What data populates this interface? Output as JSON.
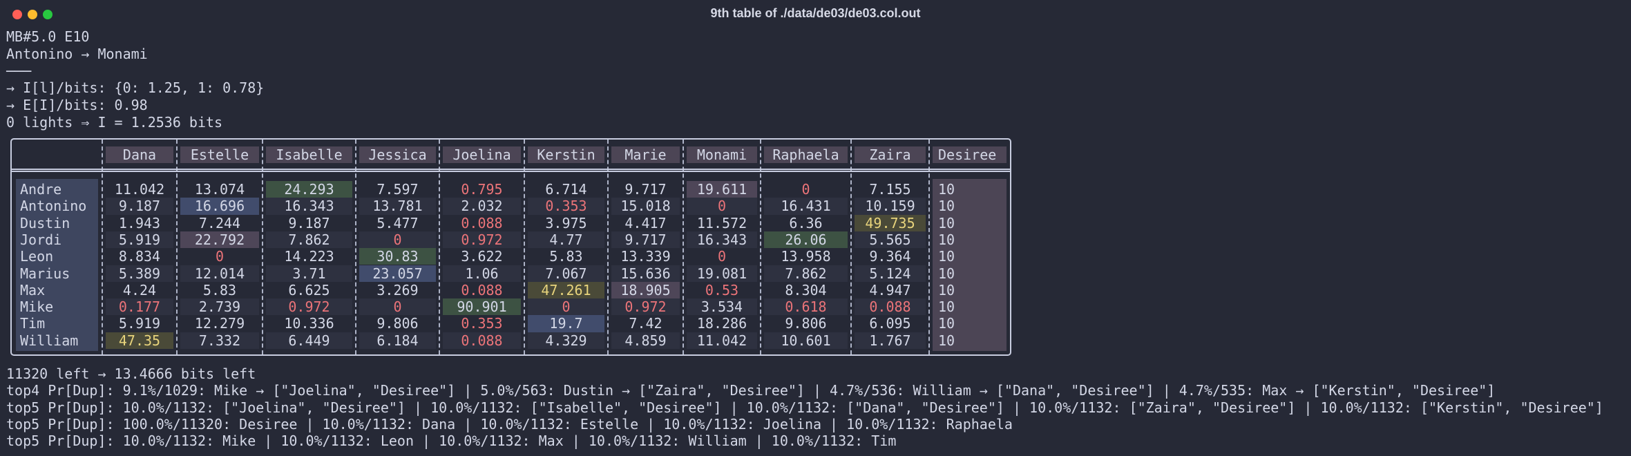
{
  "header": {
    "window_title": "9th table of ./data/de03/de03.col.out"
  },
  "lines": [
    "MB#5.0 E10",
    "Antonino → Monami",
    "───",
    "→ I[l]/bits: {0: 1.25, 1: 0.78}",
    "→ E[I]/bits: 0.98",
    "0 lights ⇒ I = 1.2536 bits"
  ],
  "table": {
    "columns": [
      "Dana",
      "Estelle",
      "Isabelle",
      "Jessica",
      "Joelina",
      "Kerstin",
      "Marie",
      "Monami",
      "Raphaela",
      "Zaira",
      "Desiree"
    ],
    "rows": [
      {
        "label": "Andre",
        "cells": [
          "11.042",
          "13.074",
          "24.293",
          "7.597",
          "0.795",
          "6.714",
          "9.717",
          "19.611",
          "0",
          "7.155",
          "10"
        ]
      },
      {
        "label": "Antonino",
        "cells": [
          "9.187",
          "16.696",
          "16.343",
          "13.781",
          "2.032",
          "0.353",
          "15.018",
          "0",
          "16.431",
          "10.159",
          "10"
        ]
      },
      {
        "label": "Dustin",
        "cells": [
          "1.943",
          "7.244",
          "9.187",
          "5.477",
          "0.088",
          "3.975",
          "4.417",
          "11.572",
          "6.36",
          "49.735",
          "10"
        ]
      },
      {
        "label": "Jordi",
        "cells": [
          "5.919",
          "22.792",
          "7.862",
          "0",
          "0.972",
          "4.77",
          "9.717",
          "16.343",
          "26.06",
          "5.565",
          "10"
        ]
      },
      {
        "label": "Leon",
        "cells": [
          "8.834",
          "0",
          "14.223",
          "30.83",
          "3.622",
          "5.83",
          "13.339",
          "0",
          "13.958",
          "9.364",
          "10"
        ]
      },
      {
        "label": "Marius",
        "cells": [
          "5.389",
          "12.014",
          "3.71",
          "23.057",
          "1.06",
          "7.067",
          "15.636",
          "19.081",
          "7.862",
          "5.124",
          "10"
        ]
      },
      {
        "label": "Max",
        "cells": [
          "4.24",
          "5.83",
          "6.625",
          "3.269",
          "0.088",
          "47.261",
          "18.905",
          "0.53",
          "8.304",
          "4.947",
          "10"
        ]
      },
      {
        "label": "Mike",
        "cells": [
          "0.177",
          "2.739",
          "0.972",
          "0",
          "90.901",
          "0",
          "0.972",
          "3.534",
          "0.618",
          "0.088",
          "10"
        ]
      },
      {
        "label": "Tim",
        "cells": [
          "5.919",
          "12.279",
          "10.336",
          "9.806",
          "0.353",
          "19.7",
          "7.42",
          "18.286",
          "9.806",
          "6.095",
          "10"
        ]
      },
      {
        "label": "William",
        "cells": [
          "47.35",
          "7.332",
          "6.449",
          "6.184",
          "0.088",
          "4.329",
          "4.859",
          "11.042",
          "10.601",
          "1.767",
          "10"
        ]
      }
    ]
  },
  "footer": [
    "11320 left → 13.4666 bits left",
    "top4 Pr[Dup]: 9.1%/1029: Mike → [\"Joelina\", \"Desiree\"] | 5.0%/563: Dustin → [\"Zaira\", \"Desiree\"] | 4.7%/536: William → [\"Dana\", \"Desiree\"] | 4.7%/535: Max → [\"Kerstin\", \"Desiree\"]",
    "top5 Pr[Dup]: 10.0%/1132: [\"Joelina\", \"Desiree\"] | 10.0%/1132: [\"Isabelle\", \"Desiree\"] | 10.0%/1132: [\"Dana\", \"Desiree\"] | 10.0%/1132: [\"Zaira\", \"Desiree\"] | 10.0%/1132: [\"Kerstin\", \"Desiree\"]",
    "top5 Pr[Dup]: 100.0%/11320: Desiree | 10.0%/1132: Dana | 10.0%/1132: Estelle | 10.0%/1132: Joelina | 10.0%/1132: Raphaela",
    "top5 Pr[Dup]: 10.0%/1132: Mike | 10.0%/1132: Leon | 10.0%/1132: Max | 10.0%/1132: William | 10.0%/1132: Tim"
  ]
}
